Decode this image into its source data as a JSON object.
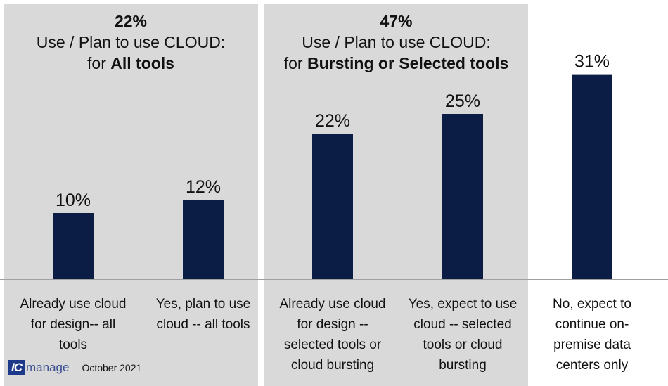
{
  "panels": [
    {
      "total": "22%",
      "line1": "Use / Plan to use CLOUD:",
      "line2_prefix": "for ",
      "line2_bold": "All tools"
    },
    {
      "total": "47%",
      "line1": "Use / Plan to use CLOUD:",
      "line2_prefix": "for ",
      "line2_bold": "Bursting or Selected tools"
    }
  ],
  "footer": {
    "logo_mark": "IC",
    "logo_word": "manage",
    "date": "October 2021"
  },
  "colors": {
    "bar": "#0b1d45",
    "panel": "#d9d9d9"
  },
  "chart_data": {
    "type": "bar",
    "categories": [
      [
        "Already use cloud",
        "for design-- all",
        "tools"
      ],
      [
        "Yes, plan to use",
        "cloud -- all tools"
      ],
      [
        "Already use cloud",
        "for design --",
        "selected tools or",
        "cloud bursting"
      ],
      [
        "Yes, expect to use",
        "cloud -- selected",
        "tools or cloud",
        "bursting"
      ],
      [
        "No, expect to",
        "continue on-",
        "premise data",
        "centers only"
      ]
    ],
    "values": [
      10,
      12,
      22,
      25,
      31
    ],
    "data_labels": [
      "10%",
      "12%",
      "22%",
      "25%",
      "31%"
    ],
    "ylim": [
      0,
      31
    ],
    "grid": false,
    "legend": "none"
  }
}
